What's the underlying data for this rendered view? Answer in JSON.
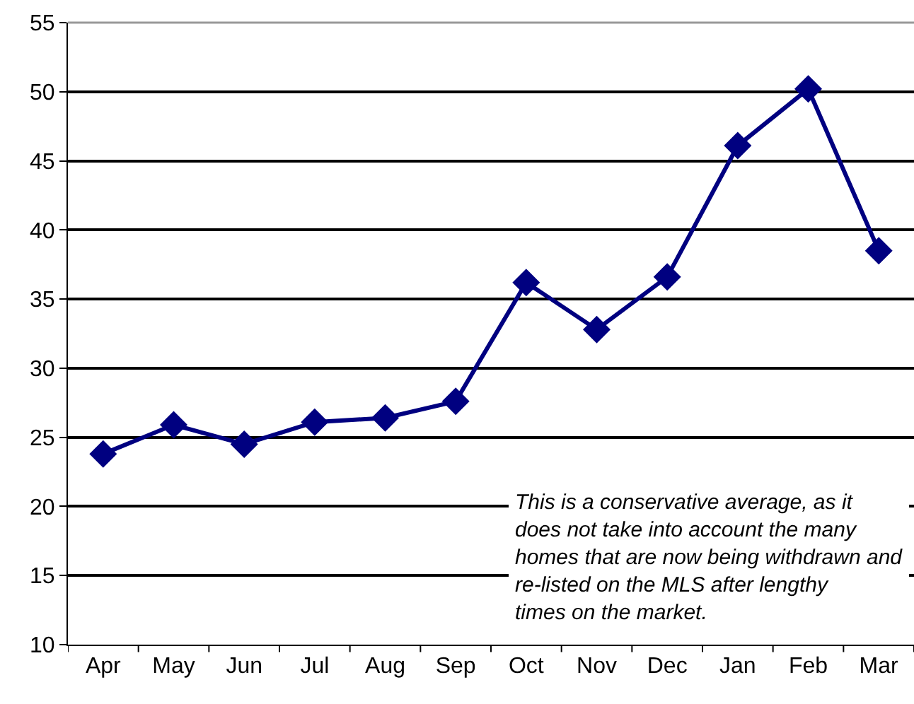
{
  "chart_data": {
    "type": "line",
    "categories": [
      "Apr",
      "May",
      "Jun",
      "Jul",
      "Aug",
      "Sep",
      "Oct",
      "Nov",
      "Dec",
      "Jan",
      "Feb",
      "Mar"
    ],
    "series": [
      {
        "color": "#000080",
        "values": [
          23.8,
          25.9,
          24.5,
          26.1,
          26.4,
          27.6,
          36.2,
          32.8,
          36.6,
          46.1,
          50.2,
          38.5
        ]
      }
    ],
    "ylim": [
      10,
      55
    ],
    "yticks": [
      10,
      15,
      20,
      25,
      30,
      35,
      40,
      45,
      50,
      55
    ],
    "grid": "y",
    "marker": "diamond",
    "line_style": "solid",
    "legend": false,
    "annotations": [
      "This is a conservative average, as it does not take into account the many homes that are now being withdrawn and re-listed on the MLS after lengthy times on the market."
    ]
  }
}
